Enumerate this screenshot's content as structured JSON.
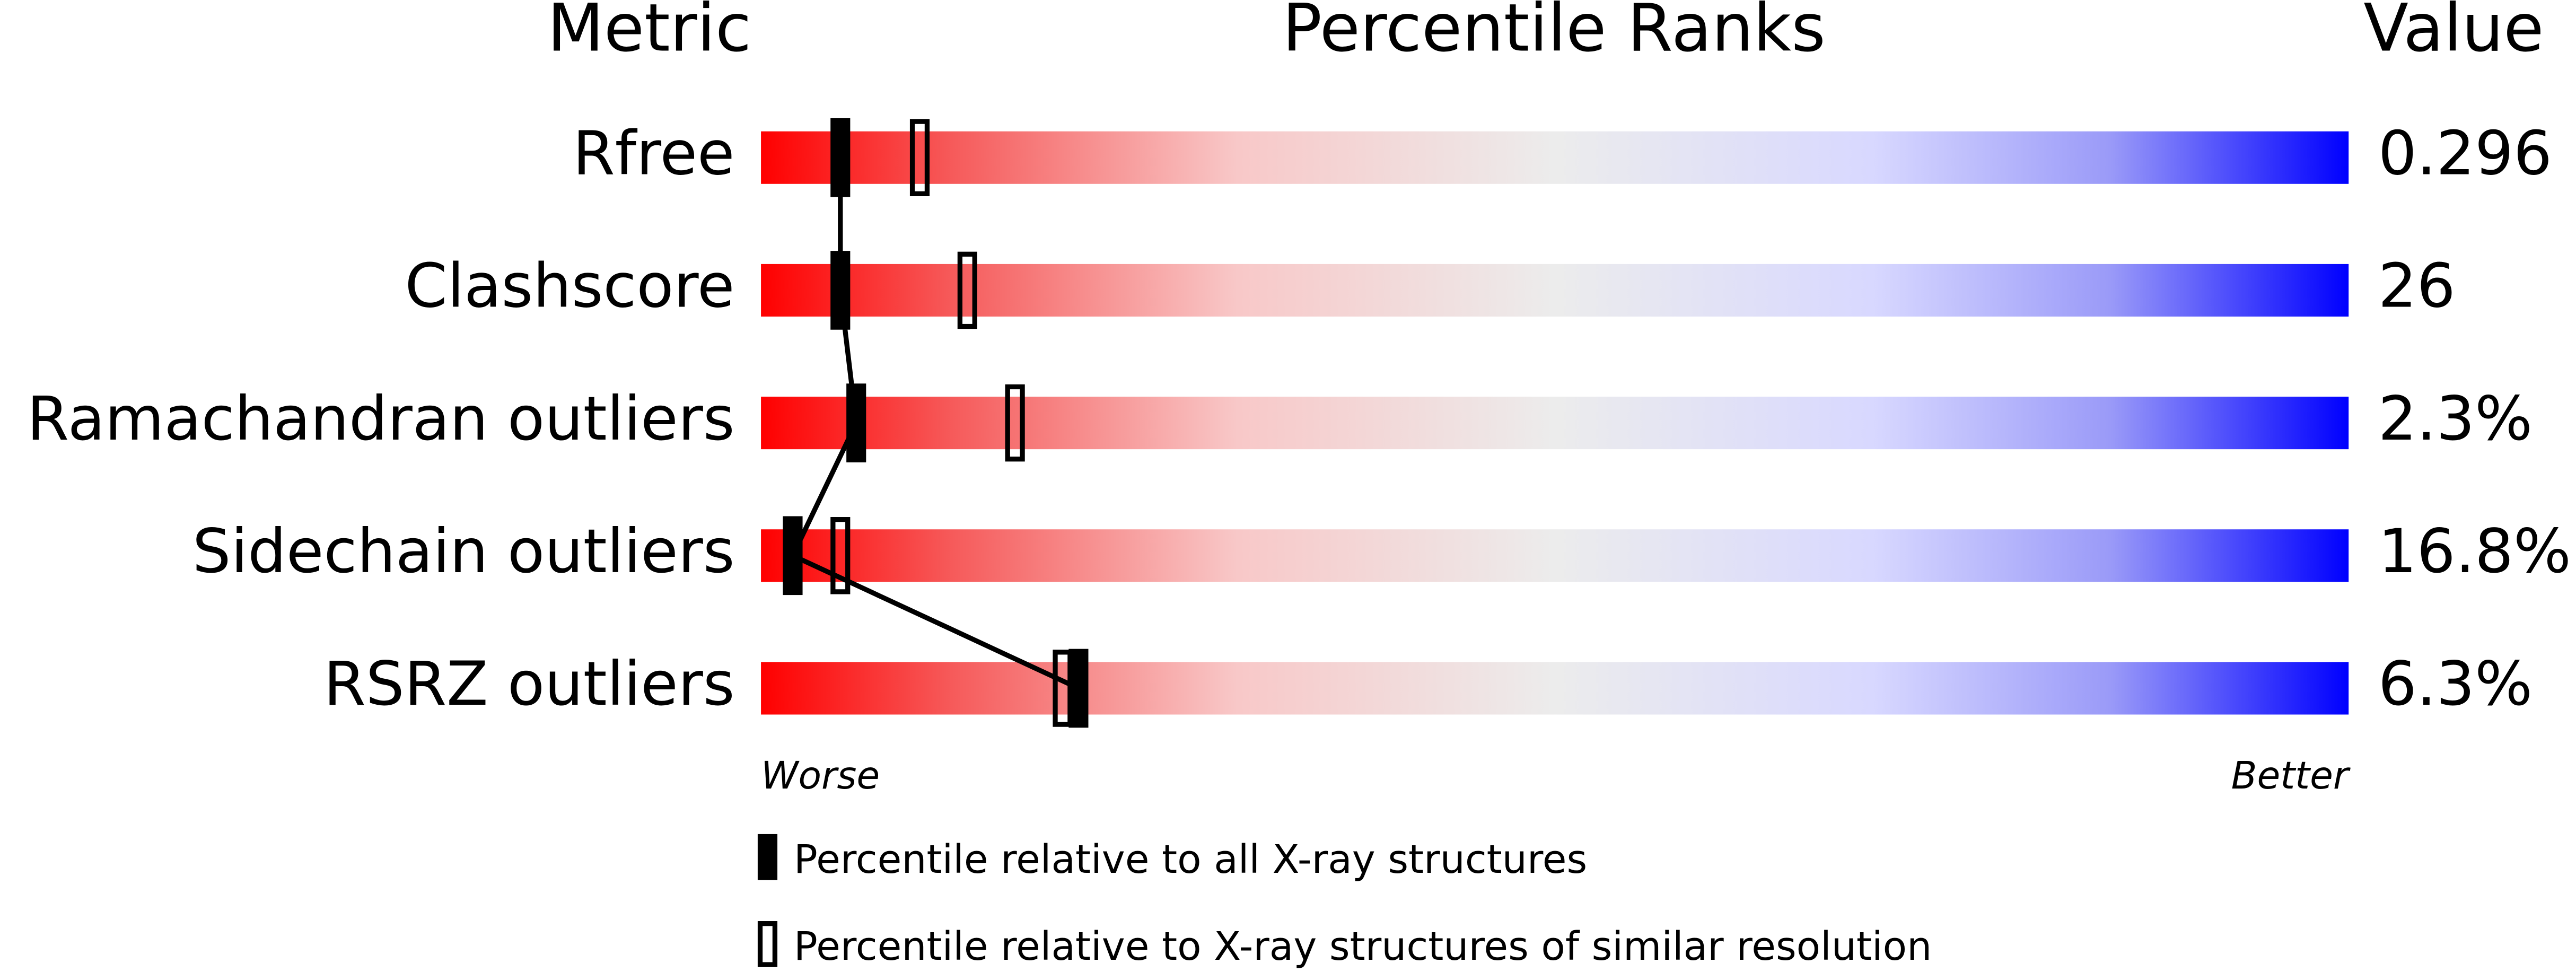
{
  "chart_data": {
    "type": "percentile",
    "headers": [
      "Metric",
      "Percentile Ranks",
      "Value"
    ],
    "categories": [
      "Rfree",
      "Clashscore",
      "Ramachandran outliers",
      "Sidechain outliers",
      "RSRZ outliers"
    ],
    "metric_values": [
      "0.296",
      "26",
      "2.3%",
      "16.8%",
      "6.3%"
    ],
    "xlim": [
      0,
      100
    ],
    "axis_ends": [
      "Worse",
      "Better"
    ],
    "series": [
      {
        "name": "Percentile relative to all X-ray structures",
        "color": "#000000",
        "style": "filled",
        "values": [
          5,
          5,
          6,
          2,
          20
        ]
      },
      {
        "name": "Percentile relative to X-ray structures of similar resolution",
        "color": "#000000",
        "style": "open",
        "values": [
          10,
          13,
          16,
          5,
          19
        ]
      }
    ]
  }
}
